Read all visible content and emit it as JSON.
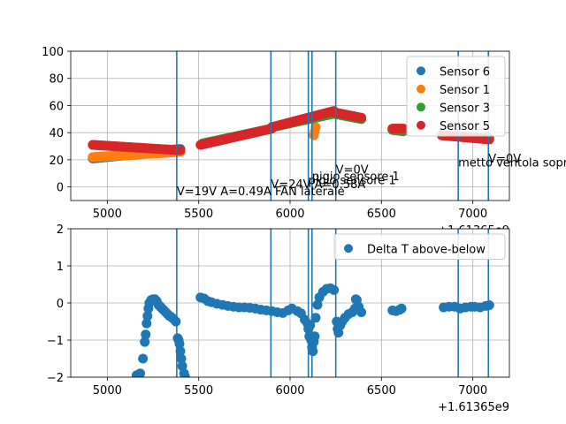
{
  "chart_data": [
    {
      "type": "scatter",
      "x_offset_label": "+1.61365e9",
      "xlim": [
        4800,
        7200
      ],
      "ylim": [
        -10,
        100
      ],
      "xticks": [
        5000,
        5500,
        6000,
        6500,
        7000
      ],
      "yticks": [
        0,
        20,
        40,
        60,
        80,
        100
      ],
      "xtick_labels": [
        "5000",
        "5500",
        "6000",
        "6500",
        "7000"
      ],
      "ytick_labels": [
        "0",
        "20",
        "40",
        "60",
        "80",
        "100"
      ],
      "grid": true,
      "legend_position": "top-right",
      "series": [
        {
          "name": "Sensor 6",
          "color": "#1f77b4",
          "segments": [
            {
              "x0": 4920,
              "x1": 5230,
              "y0": 21,
              "y1": 25
            },
            {
              "x0": 5230,
              "x1": 5400,
              "y0": 26,
              "y1": 28
            }
          ]
        },
        {
          "name": "Sensor 1",
          "color": "#ff7f0e",
          "segments": [
            {
              "x0": 4920,
              "x1": 5300,
              "y0": 22,
              "y1": 25
            },
            {
              "x0": 5300,
              "x1": 5400,
              "y0": 25,
              "y1": 26
            },
            {
              "x0": 6130,
              "x1": 6140,
              "y0": 38,
              "y1": 44
            }
          ]
        },
        {
          "name": "Sensor 3",
          "color": "#2ca02c",
          "segments": [
            {
              "x0": 5520,
              "x1": 5900,
              "y0": 32,
              "y1": 43
            },
            {
              "x0": 5900,
              "x1": 6240,
              "y0": 44,
              "y1": 54
            },
            {
              "x0": 6240,
              "x1": 6390,
              "y0": 54,
              "y1": 50
            },
            {
              "x0": 6560,
              "x1": 6620,
              "y0": 42,
              "y1": 41
            },
            {
              "x0": 6840,
              "x1": 7090,
              "y0": 38,
              "y1": 36
            }
          ]
        },
        {
          "name": "Sensor 5",
          "color": "#d62728",
          "segments": [
            {
              "x0": 4920,
              "x1": 5400,
              "y0": 31,
              "y1": 27
            },
            {
              "x0": 5510,
              "x1": 5900,
              "y0": 31,
              "y1": 43
            },
            {
              "x0": 5900,
              "x1": 6240,
              "y0": 44,
              "y1": 56
            },
            {
              "x0": 6240,
              "x1": 6390,
              "y0": 55,
              "y1": 51
            },
            {
              "x0": 6560,
              "x1": 6620,
              "y0": 43,
              "y1": 43
            },
            {
              "x0": 6830,
              "x1": 7090,
              "y0": 38,
              "y1": 35
            }
          ]
        }
      ],
      "vlines": [
        5380,
        5895,
        6100,
        6120,
        6250,
        6920,
        7085
      ],
      "annotations": [
        {
          "x": 5380,
          "y": -6,
          "text": "V=19V A=0.49A FAN laterale"
        },
        {
          "x": 5895,
          "y": -1,
          "text": "V=24V A=0.58A"
        },
        {
          "x": 6100,
          "y": 2,
          "text": "pigio sensore 1"
        },
        {
          "x": 6120,
          "y": 5,
          "text": "pigio sensore 1"
        },
        {
          "x": 6250,
          "y": 10,
          "text": "V=0V"
        },
        {
          "x": 6920,
          "y": 15,
          "text": "metto ventola sopra"
        },
        {
          "x": 7085,
          "y": 18,
          "text": "V=0V"
        }
      ]
    },
    {
      "type": "scatter",
      "x_offset_label": "+1.61365e9",
      "xlim": [
        4800,
        7200
      ],
      "ylim": [
        -2,
        2
      ],
      "xticks": [
        5000,
        5500,
        6000,
        6500,
        7000
      ],
      "yticks": [
        -2,
        -1,
        0,
        1,
        2
      ],
      "xtick_labels": [
        "5000",
        "5500",
        "6000",
        "6500",
        "7000"
      ],
      "ytick_labels": [
        "−2",
        "−1",
        "0",
        "1",
        "2"
      ],
      "grid": true,
      "legend_position": "top-right",
      "series": [
        {
          "name": "Delta T above-below",
          "color": "#1f77b4",
          "points": [
            [
              5160,
              -1.95
            ],
            [
              5170,
              -1.93
            ],
            [
              5180,
              -1.9
            ],
            [
              5195,
              -1.5
            ],
            [
              5205,
              -1.05
            ],
            [
              5210,
              -0.85
            ],
            [
              5215,
              -0.55
            ],
            [
              5220,
              -0.35
            ],
            [
              5225,
              -0.15
            ],
            [
              5230,
              0.0
            ],
            [
              5240,
              0.08
            ],
            [
              5250,
              0.1
            ],
            [
              5260,
              0.1
            ],
            [
              5270,
              0.05
            ],
            [
              5280,
              -0.05
            ],
            [
              5290,
              -0.1
            ],
            [
              5300,
              -0.15
            ],
            [
              5310,
              -0.2
            ],
            [
              5320,
              -0.25
            ],
            [
              5330,
              -0.3
            ],
            [
              5340,
              -0.35
            ],
            [
              5350,
              -0.38
            ],
            [
              5360,
              -0.42
            ],
            [
              5375,
              -0.5
            ],
            [
              5385,
              -0.95
            ],
            [
              5390,
              -1.0
            ],
            [
              5395,
              -1.1
            ],
            [
              5400,
              -1.3
            ],
            [
              5405,
              -1.5
            ],
            [
              5410,
              -1.7
            ],
            [
              5420,
              -1.9
            ],
            [
              5425,
              -1.98
            ],
            [
              5510,
              0.15
            ],
            [
              5530,
              0.12
            ],
            [
              5550,
              0.05
            ],
            [
              5570,
              0.02
            ],
            [
              5600,
              -0.02
            ],
            [
              5630,
              -0.05
            ],
            [
              5660,
              -0.08
            ],
            [
              5690,
              -0.1
            ],
            [
              5720,
              -0.12
            ],
            [
              5750,
              -0.12
            ],
            [
              5780,
              -0.13
            ],
            [
              5810,
              -0.15
            ],
            [
              5840,
              -0.18
            ],
            [
              5870,
              -0.2
            ],
            [
              5900,
              -0.22
            ],
            [
              5930,
              -0.25
            ],
            [
              5960,
              -0.27
            ],
            [
              5990,
              -0.2
            ],
            [
              6010,
              -0.15
            ],
            [
              6040,
              -0.22
            ],
            [
              6060,
              -0.28
            ],
            [
              6080,
              -0.45
            ],
            [
              6095,
              -0.55
            ],
            [
              6100,
              -0.7
            ],
            [
              6105,
              -0.9
            ],
            [
              6110,
              -0.6
            ],
            [
              6115,
              -1.0
            ],
            [
              6120,
              -1.2
            ],
            [
              6125,
              -1.3
            ],
            [
              6130,
              -1.05
            ],
            [
              6135,
              -0.9
            ],
            [
              6140,
              -0.4
            ],
            [
              6150,
              -0.05
            ],
            [
              6160,
              0.15
            ],
            [
              6180,
              0.3
            ],
            [
              6200,
              0.38
            ],
            [
              6220,
              0.4
            ],
            [
              6240,
              0.35
            ],
            [
              6255,
              -0.5
            ],
            [
              6260,
              -0.7
            ],
            [
              6265,
              -0.8
            ],
            [
              6275,
              -0.6
            ],
            [
              6285,
              -0.5
            ],
            [
              6300,
              -0.4
            ],
            [
              6320,
              -0.3
            ],
            [
              6340,
              -0.25
            ],
            [
              6355,
              -0.15
            ],
            [
              6360,
              0.1
            ],
            [
              6365,
              0.08
            ],
            [
              6375,
              -0.1
            ],
            [
              6390,
              -0.25
            ],
            [
              6560,
              -0.2
            ],
            [
              6580,
              -0.22
            ],
            [
              6600,
              -0.18
            ],
            [
              6610,
              -0.15
            ],
            [
              6840,
              -0.12
            ],
            [
              6870,
              -0.1
            ],
            [
              6900,
              -0.1
            ],
            [
              6930,
              -0.15
            ],
            [
              6960,
              -0.12
            ],
            [
              6990,
              -0.1
            ],
            [
              7010,
              -0.1
            ],
            [
              7040,
              -0.12
            ],
            [
              7070,
              -0.08
            ],
            [
              7090,
              -0.06
            ]
          ]
        }
      ],
      "vlines": [
        5380,
        5895,
        6100,
        6120,
        6250,
        6920,
        7085
      ]
    }
  ]
}
